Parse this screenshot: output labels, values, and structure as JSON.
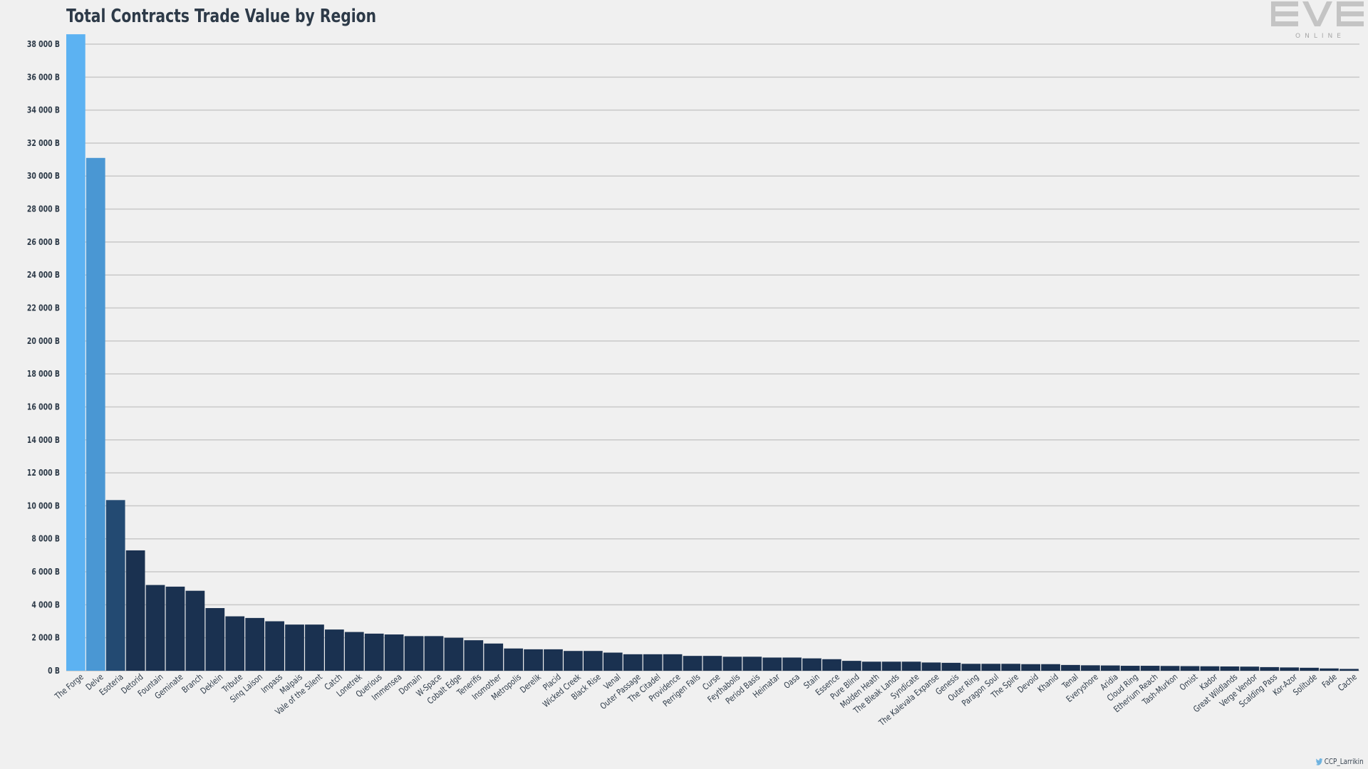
{
  "brand": {
    "logo_text": "EVE",
    "logo_sub": "ONLINE",
    "credit": "CCP_Larrikin",
    "credit_icon": "twitter-bird-icon"
  },
  "colors": {
    "background": "#f0f0f0",
    "bar_top": "#5cb2f2",
    "bar_second": "#4a97d3",
    "bar_third": "#234a72",
    "bar_default": "#1a3150",
    "grid": "#c8c8c8",
    "text": "#2d3a48"
  },
  "chart_data": {
    "type": "bar",
    "title": "Total Contracts Trade Value by Region",
    "xlabel": "",
    "ylabel": "",
    "ylim": [
      0,
      38000
    ],
    "yticks": [
      0,
      2000,
      4000,
      6000,
      8000,
      10000,
      12000,
      14000,
      16000,
      18000,
      20000,
      22000,
      24000,
      26000,
      28000,
      30000,
      32000,
      34000,
      36000,
      38000
    ],
    "ytick_labels": [
      "0 B",
      "2 000 B",
      "4 000 B",
      "6 000 B",
      "8 000 B",
      "10 000 B",
      "12 000 B",
      "14 000 B",
      "16 000 B",
      "18 000 B",
      "20 000 B",
      "22 000 B",
      "24 000 B",
      "26 000 B",
      "28 000 B",
      "30 000 B",
      "32 000 B",
      "34 000 B",
      "36 000 B",
      "38 000 B"
    ],
    "grid": true,
    "legend": "none",
    "categories": [
      "The Forge",
      "Delve",
      "Esoteria",
      "Detorid",
      "Fountain",
      "Geminate",
      "Branch",
      "Deklein",
      "Tribute",
      "Sinq Laison",
      "Impass",
      "Malpais",
      "Vale of the Silent",
      "Catch",
      "Lonetrek",
      "Querious",
      "Immensea",
      "Domain",
      "W-Space",
      "Cobalt Edge",
      "Tenerifis",
      "Insmother",
      "Metropolis",
      "Derelik",
      "Placid",
      "Wicked Creek",
      "Black Rise",
      "Venal",
      "Outer Passage",
      "The Citadel",
      "Providence",
      "Perrigen Falls",
      "Curse",
      "Feythabolis",
      "Period Basis",
      "Heimatar",
      "Oasa",
      "Stain",
      "Essence",
      "Pure Blind",
      "Molden Heath",
      "The Bleak Lands",
      "Syndicate",
      "The Kalevala Expanse",
      "Genesis",
      "Outer Ring",
      "Paragon Soul",
      "The Spire",
      "Devoid",
      "Khanid",
      "Tenal",
      "Everyshore",
      "Aridia",
      "Cloud Ring",
      "Etherium Reach",
      "Tash-Murkon",
      "Omist",
      "Kador",
      "Great Wildlands",
      "Verge Vendor",
      "Scalding Pass",
      "Kor-Azor",
      "Solitude",
      "Fade",
      "Cache"
    ],
    "values": [
      38600,
      31100,
      10350,
      7300,
      5200,
      5100,
      4850,
      3800,
      3300,
      3200,
      3000,
      2800,
      2800,
      2500,
      2350,
      2250,
      2200,
      2100,
      2100,
      2000,
      1850,
      1650,
      1350,
      1300,
      1300,
      1200,
      1200,
      1100,
      1000,
      1000,
      1000,
      900,
      900,
      850,
      850,
      800,
      800,
      750,
      700,
      600,
      550,
      550,
      550,
      500,
      480,
      420,
      420,
      420,
      400,
      400,
      350,
      330,
      320,
      300,
      300,
      290,
      280,
      270,
      260,
      250,
      220,
      200,
      180,
      140,
      110
    ]
  }
}
